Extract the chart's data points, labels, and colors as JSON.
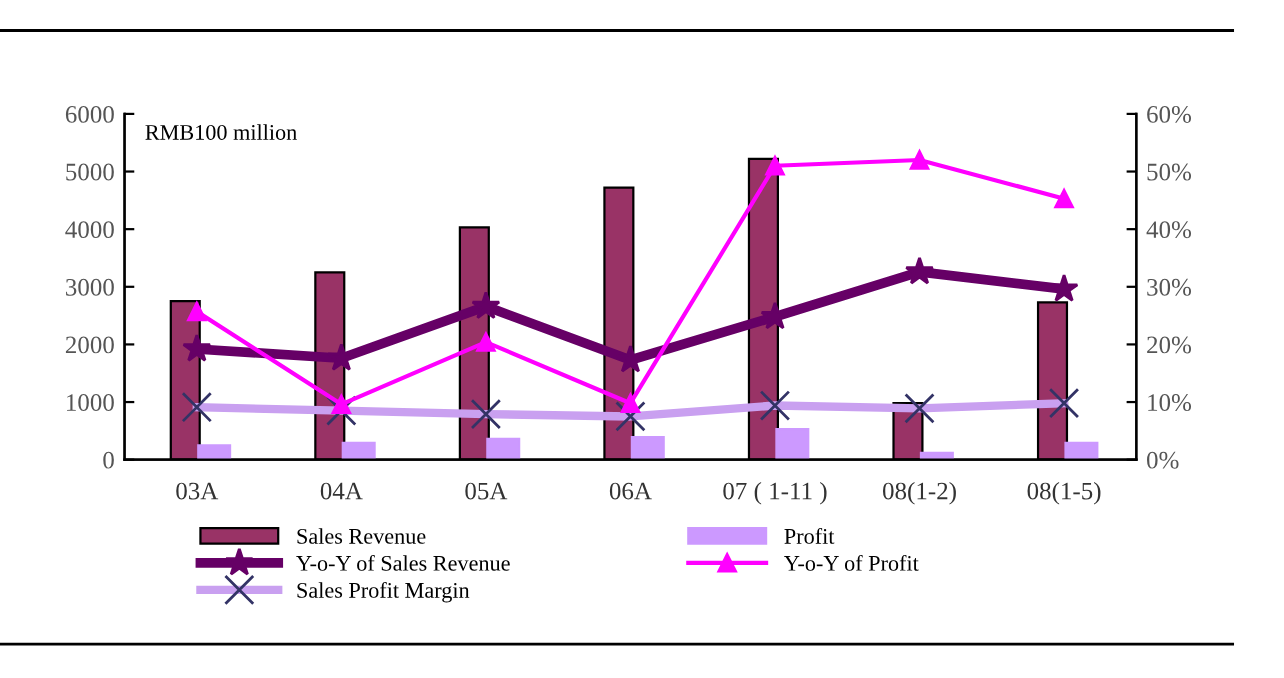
{
  "chart_data": {
    "type": "bar",
    "categories": [
      "03A",
      "04A",
      "05A",
      "06A",
      "07 ( 1-11 )",
      "08(1-2)",
      "08(1-5)"
    ],
    "series": [
      {
        "name": "Sales Revenue",
        "color": "#993366",
        "values": [
          2750,
          3250,
          4030,
          4720,
          5220,
          980,
          2730
        ]
      },
      {
        "name": "Profit",
        "color": "#cc99ff",
        "values": [
          250,
          290,
          360,
          390,
          530,
          120,
          290
        ]
      },
      {
        "name": "Y-o-Y of Sales Revenue",
        "type": "line",
        "axis": "y2",
        "color": "#660066",
        "marker": "star",
        "values": [
          19.2,
          17.6,
          26.6,
          17.3,
          24.8,
          32.6,
          29.6
        ]
      },
      {
        "name": "Y-o-Y of Profit",
        "type": "line",
        "axis": "y2",
        "color": "#ff00ff",
        "marker": "triangle",
        "values": [
          25.7,
          9.6,
          20.4,
          9.8,
          51.0,
          52.0,
          45.3
        ]
      },
      {
        "name": "Sales Profit Margin",
        "type": "line",
        "axis": "y2",
        "color": "#c9a0f0",
        "marker": "cross",
        "values": [
          9.1,
          8.5,
          7.9,
          7.5,
          9.4,
          8.9,
          9.8
        ]
      }
    ],
    "ylim": [
      0,
      6000
    ],
    "yticks": [
      0,
      1000,
      2000,
      3000,
      4000,
      5000,
      6000
    ],
    "y2lim": [
      0,
      60
    ],
    "y2ticks": [
      {
        "value": 0,
        "label": "0%"
      },
      {
        "value": 10,
        "label": "10%"
      },
      {
        "value": 20,
        "label": "20%"
      },
      {
        "value": 30,
        "label": "30%"
      },
      {
        "value": 40,
        "label": "40%"
      },
      {
        "value": 50,
        "label": "50%"
      },
      {
        "value": 60,
        "label": "60%"
      }
    ],
    "annotations": [
      "RMB100 million"
    ],
    "grid": false,
    "legend": "bottom",
    "line_style": "solid"
  }
}
